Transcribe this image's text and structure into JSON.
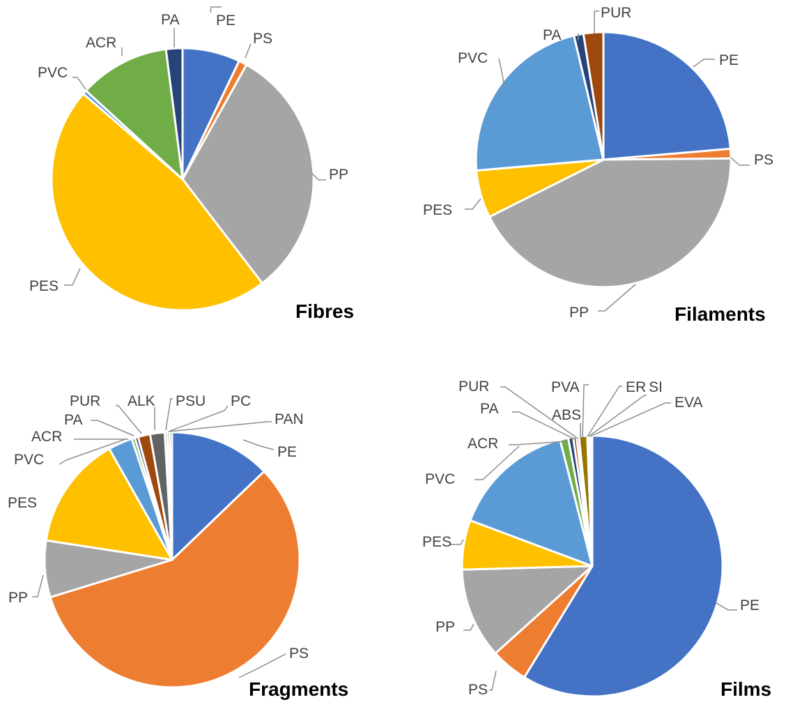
{
  "chart_data": [
    {
      "type": "pie",
      "title": "Fibres",
      "categories": [
        "PE",
        "PS",
        "PP",
        "PES",
        "PVC",
        "ACR",
        "PA"
      ],
      "values": [
        7,
        1,
        31,
        46,
        0.5,
        11,
        2
      ],
      "colors": [
        "#4472C4",
        "#ED7D31",
        "#A5A5A5",
        "#FFC000",
        "#5B9BD5",
        "#70AD47",
        "#264478"
      ]
    },
    {
      "type": "pie",
      "title": "Filaments",
      "categories": [
        "PE",
        "PS",
        "PP",
        "PES",
        "PVC",
        "PA",
        "PUR"
      ],
      "values": [
        23.5,
        1.2,
        42.5,
        6,
        22.5,
        1.2,
        2.5
      ],
      "colors": [
        "#4472C4",
        "#ED7D31",
        "#A5A5A5",
        "#FFC000",
        "#5B9BD5",
        "#264478",
        "#9E480E"
      ]
    },
    {
      "type": "pie",
      "title": "Fragments",
      "categories": [
        "PE",
        "PS",
        "PP",
        "PES",
        "PVC",
        "ACR",
        "PA",
        "PUR",
        "ALK",
        "PSU",
        "PC",
        "PAN"
      ],
      "values": [
        12.5,
        56,
        7,
        14,
        3,
        0.4,
        0.4,
        1.5,
        1.8,
        0.3,
        0.3,
        0.3
      ],
      "colors": [
        "#4472C4",
        "#ED7D31",
        "#A5A5A5",
        "#FFC000",
        "#5B9BD5",
        "#70AD47",
        "#264478",
        "#9E480E",
        "#636363",
        "#997300",
        "#255E91",
        "#43682B"
      ]
    },
    {
      "type": "pie",
      "title": "Films",
      "categories": [
        "PE",
        "PS",
        "PP",
        "PES",
        "PVC",
        "ACR",
        "PA",
        "PUR",
        "ABS",
        "PVA",
        "ER",
        "SI",
        "EVA"
      ],
      "values": [
        57.5,
        4.5,
        11,
        6,
        15,
        1,
        0.6,
        0.4,
        0.3,
        1,
        0.2,
        0.2,
        0.2
      ],
      "colors": [
        "#4472C4",
        "#ED7D31",
        "#A5A5A5",
        "#FFC000",
        "#5B9BD5",
        "#70AD47",
        "#264478",
        "#9E480E",
        "#636363",
        "#997300",
        "#255E91",
        "#43682B",
        "#698ED0"
      ]
    }
  ]
}
